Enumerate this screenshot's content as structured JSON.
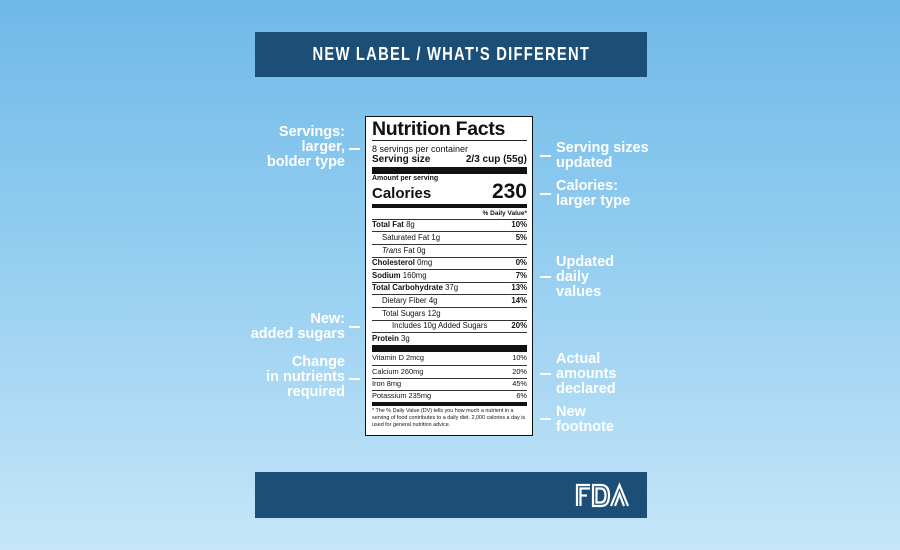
{
  "banner_title": "NEW LABEL / WHAT'S DIFFERENT",
  "logo_text": "FDA",
  "label": {
    "title": "Nutrition Facts",
    "servings_per_container": "8 servings per container",
    "serving_size_label": "Serving size",
    "serving_size_value": "2/3 cup (55g)",
    "amount_per_serving": "Amount per serving",
    "calories_label": "Calories",
    "calories_value": "230",
    "dv_header": "% Daily Value*",
    "nutrients": [
      {
        "name": "Total Fat",
        "amount": "8g",
        "dv": "10%"
      },
      {
        "name": "Saturated Fat",
        "amount": "1g",
        "dv": "5%"
      },
      {
        "name": "Trans",
        "amount": "Fat 0g",
        "dv": ""
      },
      {
        "name": "Cholesterol",
        "amount": "0mg",
        "dv": "0%"
      },
      {
        "name": "Sodium",
        "amount": "160mg",
        "dv": "7%"
      },
      {
        "name": "Total Carbohydrate",
        "amount": "37g",
        "dv": "13%"
      },
      {
        "name": "Dietary Fiber",
        "amount": "4g",
        "dv": "14%"
      },
      {
        "name": "Total Sugars",
        "amount": "12g",
        "dv": ""
      },
      {
        "name": "Includes 10g Added Sugars",
        "amount": "",
        "dv": "20%"
      },
      {
        "name": "Protein",
        "amount": "3g",
        "dv": ""
      }
    ],
    "vitamins": [
      {
        "name": "Vitamin D 2mcg",
        "dv": "10%"
      },
      {
        "name": "Calcium 260mg",
        "dv": "20%"
      },
      {
        "name": "Iron 8mg",
        "dv": "45%"
      },
      {
        "name": "Potassium 235mg",
        "dv": "6%"
      }
    ],
    "footnote": "* The % Daily Value (DV) tells you how much a nutrient in a serving of food contributes to a daily diet. 2,000 calories a day is used for general nutrition advice."
  },
  "annotations_left": [
    {
      "lines": [
        "Servings:",
        "larger,",
        "bolder type"
      ]
    },
    {
      "lines": [
        "New:",
        "added sugars"
      ]
    },
    {
      "lines": [
        "Change",
        "in nutrients",
        "required"
      ]
    }
  ],
  "annotations_right": [
    {
      "lines": [
        "Serving sizes",
        "updated"
      ]
    },
    {
      "lines": [
        "Calories:",
        "larger type"
      ]
    },
    {
      "lines": [
        "Updated",
        "daily",
        "values"
      ]
    },
    {
      "lines": [
        "Actual",
        "amounts",
        "declared"
      ]
    },
    {
      "lines": [
        "New",
        "footnote"
      ]
    }
  ],
  "colors": {
    "banner": "#1b4f78",
    "background_top": "#6fb9e8",
    "background_bottom": "#c6e6f8",
    "annotation_text": "#ffffff"
  }
}
